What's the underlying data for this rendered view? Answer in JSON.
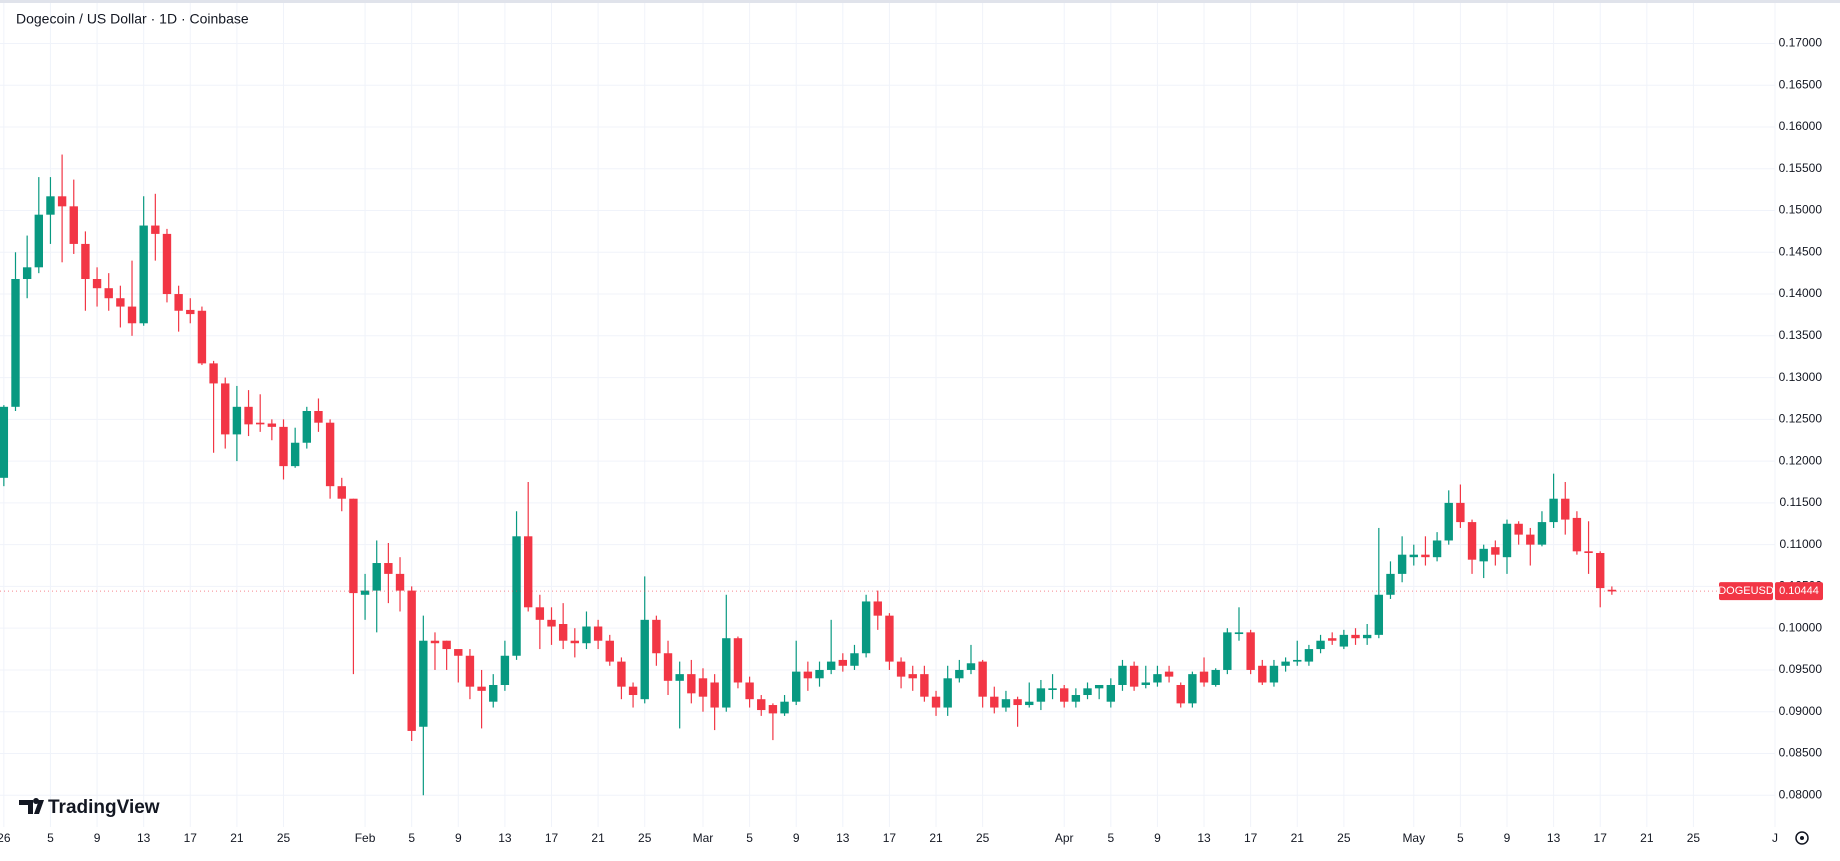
{
  "chart_data": {
    "type": "candlestick",
    "title": "Dogecoin / US Dollar · 1D · Coinbase",
    "brand": "TradingView",
    "symbol": "DOGEUSD",
    "last_price": 0.10444,
    "up_color": "#089981",
    "down_color": "#f23645",
    "open": [
      0.118,
      0.1265,
      0.1418,
      0.1432,
      0.1495,
      0.1517,
      0.1505,
      0.146,
      0.1418,
      0.1407,
      0.1395,
      0.1385,
      0.1365,
      0.1482,
      0.1472,
      0.14,
      0.1381,
      0.138,
      0.1317,
      0.1293,
      0.1232,
      0.1265,
      0.1246,
      0.1245,
      0.1241,
      0.1194,
      0.1222,
      0.126,
      0.1246,
      0.117,
      0.1155,
      0.104,
      0.1045,
      0.1078,
      0.1065,
      0.1045,
      0.0882,
      0.0985,
      0.0985,
      0.0975,
      0.0967,
      0.093,
      0.0912,
      0.0932,
      0.0967,
      0.111,
      0.1025,
      0.101,
      0.1005,
      0.0985,
      0.0982,
      0.1002,
      0.0985,
      0.096,
      0.093,
      0.0915,
      0.101,
      0.097,
      0.0937,
      0.0945,
      0.094,
      0.0935,
      0.0905,
      0.0988,
      0.0935,
      0.0915,
      0.0908,
      0.0898,
      0.0912,
      0.0948,
      0.094,
      0.095,
      0.0962,
      0.0955,
      0.097,
      0.1032,
      0.1015,
      0.096,
      0.0945,
      0.0945,
      0.0918,
      0.0905,
      0.094,
      0.095,
      0.096,
      0.0918,
      0.0905,
      0.0915,
      0.0908,
      0.0912,
      0.0926,
      0.0928,
      0.0912,
      0.092,
      0.0928,
      0.0912,
      0.0932,
      0.0955,
      0.0932,
      0.0935,
      0.0948,
      0.0932,
      0.091,
      0.0948,
      0.0932,
      0.095,
      0.0993,
      0.0995,
      0.0955,
      0.0935,
      0.0955,
      0.096,
      0.096,
      0.0975,
      0.0988,
      0.0978,
      0.0992,
      0.0988,
      0.0992,
      0.104,
      0.1065,
      0.1085,
      0.1088,
      0.1085,
      0.1105,
      0.115,
      0.1127,
      0.108,
      0.1097,
      0.1085,
      0.1125,
      0.1112,
      0.11,
      0.1127,
      0.1155,
      0.1132,
      0.1092,
      0.109,
      0.1046
    ],
    "high": [
      0.1267,
      0.145,
      0.147,
      0.154,
      0.154,
      0.1567,
      0.1537,
      0.1475,
      0.1432,
      0.1425,
      0.141,
      0.144,
      0.1517,
      0.152,
      0.1478,
      0.141,
      0.1395,
      0.1385,
      0.132,
      0.13,
      0.129,
      0.1285,
      0.128,
      0.125,
      0.125,
      0.124,
      0.1265,
      0.1275,
      0.125,
      0.118,
      0.1155,
      0.1065,
      0.1105,
      0.1102,
      0.1085,
      0.105,
      0.1015,
      0.0995,
      0.0985,
      0.0972,
      0.0975,
      0.095,
      0.0945,
      0.0985,
      0.114,
      0.1175,
      0.104,
      0.1025,
      0.103,
      0.1,
      0.102,
      0.101,
      0.0992,
      0.0965,
      0.0935,
      0.1062,
      0.1015,
      0.0985,
      0.096,
      0.0962,
      0.0952,
      0.0945,
      0.104,
      0.099,
      0.0942,
      0.092,
      0.091,
      0.092,
      0.0985,
      0.096,
      0.096,
      0.101,
      0.097,
      0.098,
      0.104,
      0.1045,
      0.1018,
      0.0965,
      0.0955,
      0.0955,
      0.0925,
      0.0955,
      0.0962,
      0.098,
      0.0962,
      0.093,
      0.0925,
      0.0918,
      0.0935,
      0.0938,
      0.0945,
      0.0932,
      0.0928,
      0.0935,
      0.0932,
      0.094,
      0.0962,
      0.096,
      0.0955,
      0.0955,
      0.0955,
      0.0935,
      0.0948,
      0.0965,
      0.0952,
      0.1,
      0.1025,
      0.0998,
      0.0962,
      0.0962,
      0.0965,
      0.0985,
      0.098,
      0.0992,
      0.0995,
      0.0998,
      0.1,
      0.1005,
      0.112,
      0.108,
      0.111,
      0.11,
      0.111,
      0.1115,
      0.1165,
      0.1172,
      0.113,
      0.11,
      0.1105,
      0.113,
      0.1128,
      0.112,
      0.114,
      0.1185,
      0.1175,
      0.114,
      0.1128,
      0.1092,
      0.105
    ],
    "low": [
      0.117,
      0.126,
      0.1395,
      0.1425,
      0.146,
      0.1438,
      0.1448,
      0.138,
      0.1385,
      0.138,
      0.136,
      0.135,
      0.1362,
      0.144,
      0.139,
      0.1355,
      0.1365,
      0.1315,
      0.121,
      0.1215,
      0.12,
      0.123,
      0.1235,
      0.1225,
      0.1178,
      0.1192,
      0.1215,
      0.1235,
      0.1155,
      0.114,
      0.0945,
      0.101,
      0.0995,
      0.103,
      0.102,
      0.0865,
      0.08,
      0.095,
      0.095,
      0.0935,
      0.0915,
      0.088,
      0.0905,
      0.0925,
      0.0962,
      0.102,
      0.0975,
      0.098,
      0.0975,
      0.0965,
      0.0975,
      0.0975,
      0.0955,
      0.0915,
      0.0905,
      0.091,
      0.0955,
      0.092,
      0.088,
      0.091,
      0.09,
      0.0878,
      0.09,
      0.0928,
      0.0905,
      0.0895,
      0.0866,
      0.0895,
      0.0908,
      0.0925,
      0.093,
      0.0945,
      0.0948,
      0.095,
      0.0965,
      0.0998,
      0.095,
      0.0928,
      0.0925,
      0.0912,
      0.0895,
      0.0895,
      0.0935,
      0.0945,
      0.0905,
      0.0898,
      0.09,
      0.0882,
      0.0905,
      0.0902,
      0.0915,
      0.0905,
      0.0905,
      0.0915,
      0.0915,
      0.0905,
      0.0925,
      0.0925,
      0.0928,
      0.093,
      0.0935,
      0.0905,
      0.0905,
      0.093,
      0.093,
      0.0945,
      0.0985,
      0.0945,
      0.0932,
      0.093,
      0.0948,
      0.0955,
      0.0955,
      0.097,
      0.098,
      0.0975,
      0.098,
      0.098,
      0.0988,
      0.1035,
      0.1055,
      0.1075,
      0.1075,
      0.108,
      0.11,
      0.112,
      0.1065,
      0.106,
      0.1075,
      0.1065,
      0.11,
      0.1075,
      0.1098,
      0.112,
      0.1112,
      0.1088,
      0.1065,
      0.1025,
      0.104
    ],
    "close": [
      0.1265,
      0.1418,
      0.1432,
      0.1495,
      0.1517,
      0.1505,
      0.146,
      0.1418,
      0.1407,
      0.1395,
      0.1385,
      0.1365,
      0.1482,
      0.1472,
      0.14,
      0.138,
      0.1376,
      0.1317,
      0.1293,
      0.1232,
      0.1265,
      0.1244,
      0.1244,
      0.1241,
      0.1194,
      0.1222,
      0.126,
      0.1246,
      0.117,
      0.1155,
      0.1042,
      0.1045,
      0.1078,
      0.1065,
      0.1045,
      0.0877,
      0.0985,
      0.0982,
      0.0975,
      0.0967,
      0.093,
      0.0925,
      0.0932,
      0.0967,
      0.111,
      0.1025,
      0.101,
      0.1002,
      0.0985,
      0.0982,
      0.1002,
      0.0985,
      0.096,
      0.093,
      0.092,
      0.101,
      0.097,
      0.0937,
      0.0945,
      0.0922,
      0.0918,
      0.0905,
      0.0988,
      0.0935,
      0.0915,
      0.0902,
      0.0898,
      0.0912,
      0.0948,
      0.094,
      0.095,
      0.096,
      0.0955,
      0.097,
      0.1032,
      0.1015,
      0.096,
      0.0942,
      0.094,
      0.0918,
      0.0905,
      0.094,
      0.095,
      0.0958,
      0.0918,
      0.0905,
      0.0915,
      0.0908,
      0.0912,
      0.0928,
      0.0928,
      0.0912,
      0.092,
      0.0928,
      0.0932,
      0.0932,
      0.0955,
      0.093,
      0.0935,
      0.0945,
      0.0942,
      0.091,
      0.0945,
      0.0935,
      0.095,
      0.0995,
      0.0995,
      0.095,
      0.0935,
      0.0955,
      0.096,
      0.0962,
      0.0975,
      0.0985,
      0.0985,
      0.0992,
      0.0988,
      0.0992,
      0.104,
      0.1065,
      0.1088,
      0.1088,
      0.1085,
      0.1105,
      0.115,
      0.1127,
      0.1082,
      0.1095,
      0.1088,
      0.1125,
      0.1112,
      0.11,
      0.1127,
      0.1155,
      0.113,
      0.1092,
      0.109,
      0.1048,
      0.1044
    ],
    "xlim": [
      -0.33,
      152
    ],
    "xticks": [
      {
        "value": 0,
        "label": "26"
      },
      {
        "value": 4,
        "label": "5"
      },
      {
        "value": 8,
        "label": "9"
      },
      {
        "value": 12,
        "label": "13"
      },
      {
        "value": 16,
        "label": "17"
      },
      {
        "value": 20,
        "label": "21"
      },
      {
        "value": 24,
        "label": "25"
      },
      {
        "value": 31,
        "label": "Feb"
      },
      {
        "value": 35,
        "label": "5"
      },
      {
        "value": 39,
        "label": "9"
      },
      {
        "value": 43,
        "label": "13"
      },
      {
        "value": 47,
        "label": "17"
      },
      {
        "value": 51,
        "label": "21"
      },
      {
        "value": 55,
        "label": "25"
      },
      {
        "value": 60,
        "label": "Mar"
      },
      {
        "value": 64,
        "label": "5"
      },
      {
        "value": 68,
        "label": "9"
      },
      {
        "value": 72,
        "label": "13"
      },
      {
        "value": 76,
        "label": "17"
      },
      {
        "value": 80,
        "label": "21"
      },
      {
        "value": 84,
        "label": "25"
      },
      {
        "value": 91,
        "label": "Apr"
      },
      {
        "value": 95,
        "label": "5"
      },
      {
        "value": 99,
        "label": "9"
      },
      {
        "value": 103,
        "label": "13"
      },
      {
        "value": 107,
        "label": "17"
      },
      {
        "value": 111,
        "label": "21"
      },
      {
        "value": 115,
        "label": "25"
      },
      {
        "value": 121,
        "label": "May"
      },
      {
        "value": 125,
        "label": "5"
      },
      {
        "value": 129,
        "label": "9"
      },
      {
        "value": 133,
        "label": "13"
      },
      {
        "value": 137,
        "label": "17"
      },
      {
        "value": 141,
        "label": "21"
      },
      {
        "value": 145,
        "label": "25"
      },
      {
        "value": 152,
        "label": "J"
      }
    ],
    "ylim": [
      0.0762,
      0.1752
    ],
    "yticks": [
      {
        "value": 0.08,
        "label": "0.08000"
      },
      {
        "value": 0.085,
        "label": "0.08500"
      },
      {
        "value": 0.09,
        "label": "0.09000"
      },
      {
        "value": 0.095,
        "label": "0.09500"
      },
      {
        "value": 0.1,
        "label": "0.10000"
      },
      {
        "value": 0.105,
        "label": "0.10500"
      },
      {
        "value": 0.11,
        "label": "0.11000"
      },
      {
        "value": 0.115,
        "label": "0.11500"
      },
      {
        "value": 0.12,
        "label": "0.12000"
      },
      {
        "value": 0.125,
        "label": "0.12500"
      },
      {
        "value": 0.13,
        "label": "0.13000"
      },
      {
        "value": 0.135,
        "label": "0.13500"
      },
      {
        "value": 0.14,
        "label": "0.14000"
      },
      {
        "value": 0.145,
        "label": "0.14500"
      },
      {
        "value": 0.15,
        "label": "0.15000"
      },
      {
        "value": 0.155,
        "label": "0.15500"
      },
      {
        "value": 0.16,
        "label": "0.16000"
      },
      {
        "value": 0.165,
        "label": "0.16500"
      },
      {
        "value": 0.17,
        "label": "0.17000"
      }
    ],
    "grid": true
  }
}
